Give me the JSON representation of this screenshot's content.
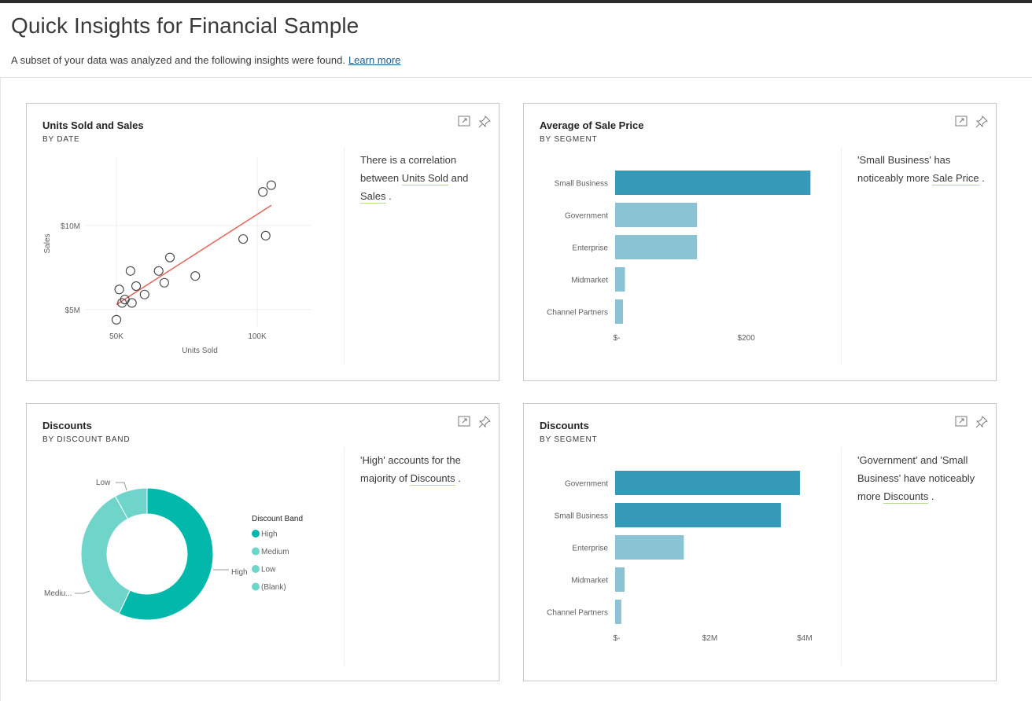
{
  "page": {
    "title": "Quick Insights for Financial Sample",
    "subtitle": "A subset of your data was analyzed and the following insights were found.",
    "learn_more": "Learn more"
  },
  "cards": [
    {
      "title": "Units Sold and Sales",
      "subtitle": "BY DATE",
      "insight": {
        "pre": "There is a correlation between ",
        "hl1": "Units Sold",
        "mid": " and ",
        "hl2": "Sales",
        "post": " ."
      },
      "chart_data": {
        "type": "scatter",
        "xlabel": "Units Sold",
        "ylabel": "Sales",
        "x_ticks": [
          "50K",
          "100K"
        ],
        "y_ticks": [
          "$10M",
          "$5M"
        ],
        "points": [
          {
            "x": 50,
            "y": 4.4
          },
          {
            "x": 51,
            "y": 6.2
          },
          {
            "x": 52,
            "y": 5.4
          },
          {
            "x": 53,
            "y": 5.6
          },
          {
            "x": 55,
            "y": 7.3
          },
          {
            "x": 55.5,
            "y": 5.4
          },
          {
            "x": 57,
            "y": 6.4
          },
          {
            "x": 60,
            "y": 5.9
          },
          {
            "x": 65,
            "y": 7.3
          },
          {
            "x": 67,
            "y": 6.6
          },
          {
            "x": 69,
            "y": 8.1
          },
          {
            "x": 78,
            "y": 7.0
          },
          {
            "x": 95,
            "y": 9.2
          },
          {
            "x": 102,
            "y": 12.0
          },
          {
            "x": 105,
            "y": 12.4
          },
          {
            "x": 103,
            "y": 9.4
          }
        ],
        "trendline": {
          "x1": 50,
          "y1": 5.3,
          "x2": 105,
          "y2": 11.2,
          "color": "#e66c60"
        }
      }
    },
    {
      "title": "Average of Sale Price",
      "subtitle": "BY SEGMENT",
      "insight": {
        "pre": "'Small Business' has noticeably more ",
        "hl1": "Sale Price",
        "post": " ."
      },
      "chart_data": {
        "type": "bar",
        "categories": [
          "Small Business",
          "Government",
          "Enterprise",
          "Midmarket",
          "Channel Partners"
        ],
        "values": [
          298,
          125,
          125,
          15,
          12
        ],
        "x_ticks": [
          "$-",
          "$200"
        ],
        "highlight_index": 0,
        "colors": {
          "highlight": "#3599b8",
          "normal": "#8ac3d4"
        }
      }
    },
    {
      "title": "Discounts",
      "subtitle": "BY DISCOUNT BAND",
      "insight": {
        "pre": "'High' accounts for the majority of ",
        "hl1": "Discounts",
        "post": " ."
      },
      "chart_data": {
        "type": "pie",
        "legend_title": "Discount Band",
        "slices": [
          {
            "label": "High",
            "value": 57,
            "color": "#01b8aa"
          },
          {
            "label": "Medium",
            "value": 35,
            "color": "#6fd4c9"
          },
          {
            "label": "Low",
            "value": 8,
            "color": "#6fd4c9"
          },
          {
            "label": "(Blank)",
            "value": 0,
            "color": "#6fd4c9"
          }
        ],
        "callouts": [
          "Low",
          "High",
          "Mediu..."
        ]
      }
    },
    {
      "title": "Discounts",
      "subtitle": "BY SEGMENT",
      "insight": {
        "pre": "'Government' and 'Small Business' have noticeably more ",
        "hl1": "Discounts",
        "post": " ."
      },
      "chart_data": {
        "type": "bar",
        "categories": [
          "Government",
          "Small Business",
          "Enterprise",
          "Midmarket",
          "Channel Partners"
        ],
        "values": [
          3.9,
          3.5,
          1.45,
          0.2,
          0.13
        ],
        "x_ticks": [
          "$-",
          "$2M",
          "$4M"
        ],
        "highlight_count": 2,
        "colors": {
          "highlight": "#3599b8",
          "normal": "#8ac3d4"
        }
      }
    }
  ]
}
